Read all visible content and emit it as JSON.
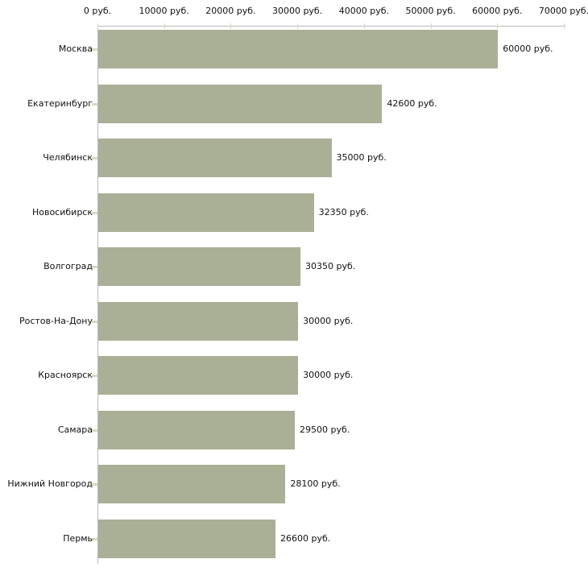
{
  "chart_data": {
    "type": "bar",
    "orientation": "horizontal",
    "unit": "руб.",
    "xlim": [
      0,
      70000
    ],
    "grid": false,
    "axis_position": "top",
    "categories": [
      "Москва",
      "Екатеринбург",
      "Челябинск",
      "Новосибирск",
      "Волгоград",
      "Ростов-На-Дону",
      "Красноярск",
      "Самара",
      "Нижний Новгород",
      "Пермь"
    ],
    "values": [
      60000,
      42600,
      35000,
      32350,
      30350,
      30000,
      30000,
      29500,
      28100,
      26600
    ],
    "value_labels": [
      "60000 руб.",
      "42600 руб.",
      "35000 руб.",
      "32350 руб.",
      "30350 руб.",
      "30000 руб.",
      "30000 руб.",
      "29500 руб.",
      "28100 руб.",
      "26600 руб."
    ],
    "x_ticks": [
      0,
      10000,
      20000,
      30000,
      40000,
      50000,
      60000,
      70000
    ],
    "x_tick_labels": [
      "0 руб.",
      "10000 руб.",
      "20000 руб.",
      "30000 руб.",
      "40000 руб.",
      "50000 руб.",
      "60000 руб.",
      "70000 руб."
    ],
    "colors": {
      "bar": "#aab096",
      "axis_line": "#bbbbbb",
      "tick": "#d8dabd",
      "text": "#111111",
      "background": "#ffffff"
    }
  }
}
